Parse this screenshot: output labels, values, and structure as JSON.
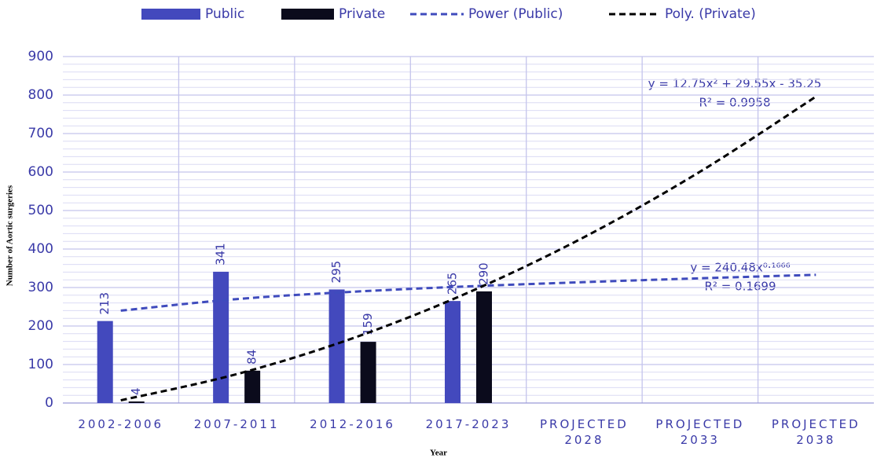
{
  "chart_data": {
    "type": "bar",
    "categories": [
      "2002-2006",
      "2007-2011",
      "2012-2016",
      "2017-2023",
      "PROJECTED 2028",
      "PROJECTED 2033",
      "PROJECTED 2038"
    ],
    "series": [
      {
        "name": "Public",
        "type": "bar",
        "color": "#4349bd",
        "values": [
          213,
          341,
          295,
          265,
          null,
          null,
          null
        ]
      },
      {
        "name": "Private",
        "type": "bar",
        "color": "#0b0b1c",
        "values": [
          4,
          84,
          159,
          290,
          null,
          null,
          null
        ]
      },
      {
        "name": "Power (Public)",
        "type": "line",
        "dashed": true,
        "color": "#3f4bbd",
        "values": [
          240,
          270,
          289,
          303,
          314,
          324,
          333
        ]
      },
      {
        "name": "Poly. (Private)",
        "type": "line",
        "dashed": true,
        "color": "#000000",
        "values": [
          7,
          75,
          168,
          287,
          431,
          601,
          796
        ]
      }
    ],
    "ylim": [
      0,
      900
    ],
    "yticks": [
      0,
      100,
      200,
      300,
      400,
      500,
      600,
      700,
      800,
      900
    ],
    "grid": true,
    "ylabel": "Number of Aortic surgeries",
    "xlabel": "Year",
    "legend": "top",
    "annotations": [
      "y = 12.75x² + 29.55x - 35.25",
      "R² = 0.9958",
      "y = 240.48x⁰·¹⁶⁶⁶",
      "R² = 0.1699"
    ]
  }
}
